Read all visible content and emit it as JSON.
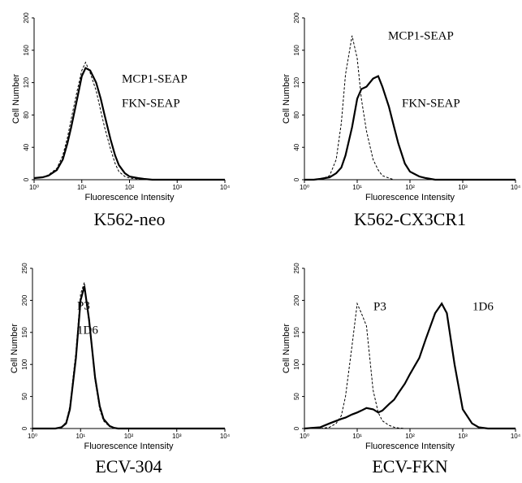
{
  "chart_data": [
    {
      "type": "line",
      "title": "K562-neo",
      "x_label": "Fluorescence Intensity",
      "y_label": "Cell Number",
      "xscale": "log",
      "xlim": [
        1,
        10000
      ],
      "xticks": [
        {
          "value": 1,
          "label": "10⁰"
        },
        {
          "value": 10,
          "label": "10¹"
        },
        {
          "value": 100,
          "label": "10²"
        },
        {
          "value": 1000,
          "label": "10³"
        },
        {
          "value": 10000,
          "label": "10⁴"
        }
      ],
      "ylim": [
        0,
        200
      ],
      "yticks": [
        0,
        40,
        80,
        120,
        160,
        200
      ],
      "x": [
        1,
        1.5,
        2,
        3,
        4,
        5,
        6,
        8,
        10,
        12,
        15,
        20,
        25,
        30,
        40,
        50,
        60,
        80,
        100,
        150,
        200,
        300,
        500,
        1000,
        10000
      ],
      "series": [
        {
          "name": "MCP1-SEAP",
          "color": "#000000",
          "dash": true,
          "values": [
            2,
            3,
            6,
            14,
            30,
            52,
            75,
            110,
            135,
            145,
            132,
            110,
            85,
            65,
            38,
            20,
            10,
            4,
            2,
            1,
            0,
            0,
            0,
            0,
            0
          ]
        },
        {
          "name": "FKN-SEAP",
          "color": "#000000",
          "dash": false,
          "values": [
            2,
            3,
            5,
            12,
            25,
            45,
            65,
            100,
            128,
            138,
            135,
            120,
            100,
            80,
            50,
            30,
            18,
            8,
            4,
            2,
            1,
            0,
            0,
            0,
            0
          ]
        }
      ]
    },
    {
      "type": "line",
      "title": "K562-CX3CR1",
      "x_label": "Fluorescence Intensity",
      "y_label": "Cell Number",
      "xscale": "log",
      "xlim": [
        1,
        10000
      ],
      "xticks": [
        {
          "value": 1,
          "label": "10⁰"
        },
        {
          "value": 10,
          "label": "10¹"
        },
        {
          "value": 100,
          "label": "10²"
        },
        {
          "value": 1000,
          "label": "10³"
        },
        {
          "value": 10000,
          "label": "10⁴"
        }
      ],
      "ylim": [
        0,
        200
      ],
      "yticks": [
        0,
        40,
        80,
        120,
        160,
        200
      ],
      "x": [
        1,
        1.5,
        2,
        3,
        4,
        5,
        6,
        8,
        10,
        12,
        15,
        20,
        25,
        30,
        40,
        50,
        60,
        80,
        100,
        150,
        200,
        300,
        500,
        1000,
        10000
      ],
      "series": [
        {
          "name": "MCP1-SEAP",
          "color": "#000000",
          "dash": true,
          "values": [
            0,
            0,
            0,
            5,
            25,
            70,
            130,
            178,
            150,
            100,
            60,
            25,
            12,
            5,
            2,
            0,
            0,
            0,
            0,
            0,
            0,
            0,
            0,
            0,
            0
          ]
        },
        {
          "name": "FKN-SEAP",
          "color": "#000000",
          "dash": false,
          "values": [
            0,
            0,
            1,
            3,
            8,
            15,
            30,
            65,
            100,
            112,
            115,
            125,
            128,
            115,
            90,
            65,
            45,
            20,
            10,
            4,
            2,
            0,
            0,
            0,
            0
          ]
        }
      ]
    },
    {
      "type": "line",
      "title": "ECV-304",
      "x_label": "Fluorescence Intensity",
      "y_label": "Cell Number",
      "xscale": "log",
      "xlim": [
        1,
        10000
      ],
      "xticks": [
        {
          "value": 1,
          "label": "10⁰"
        },
        {
          "value": 10,
          "label": "10¹"
        },
        {
          "value": 100,
          "label": "10²"
        },
        {
          "value": 1000,
          "label": "10³"
        },
        {
          "value": 10000,
          "label": "10⁴"
        }
      ],
      "ylim": [
        0,
        250
      ],
      "yticks": [
        0,
        50,
        100,
        150,
        200,
        250
      ],
      "x": [
        1,
        2,
        3,
        4,
        5,
        6,
        8,
        10,
        12,
        15,
        20,
        25,
        30,
        40,
        50,
        60,
        100,
        1000,
        10000
      ],
      "series": [
        {
          "name": "P3",
          "color": "#000000",
          "dash": true,
          "values": [
            0,
            0,
            0,
            2,
            10,
            35,
            120,
            210,
            228,
            165,
            75,
            30,
            12,
            3,
            1,
            0,
            0,
            0,
            0
          ]
        },
        {
          "name": "1D6",
          "color": "#000000",
          "dash": false,
          "values": [
            0,
            0,
            0,
            2,
            8,
            30,
            110,
            200,
            222,
            170,
            80,
            35,
            15,
            4,
            1,
            0,
            0,
            0,
            0
          ]
        }
      ]
    },
    {
      "type": "line",
      "title": "ECV-FKN",
      "x_label": "Fluorescence Intensity",
      "y_label": "Cell Number",
      "xscale": "log",
      "xlim": [
        1,
        10000
      ],
      "xticks": [
        {
          "value": 1,
          "label": "10⁰"
        },
        {
          "value": 10,
          "label": "10¹"
        },
        {
          "value": 100,
          "label": "10²"
        },
        {
          "value": 1000,
          "label": "10³"
        },
        {
          "value": 10000,
          "label": "10⁴"
        }
      ],
      "ylim": [
        0,
        250
      ],
      "yticks": [
        0,
        50,
        100,
        150,
        200,
        250
      ],
      "x": [
        1,
        2,
        3,
        4,
        5,
        6,
        8,
        10,
        12,
        15,
        20,
        25,
        30,
        40,
        50,
        60,
        80,
        100,
        150,
        200,
        300,
        400,
        500,
        700,
        1000,
        1500,
        2000,
        3000,
        10000
      ],
      "series": [
        {
          "name": "P3",
          "color": "#000000",
          "dash": true,
          "values": [
            0,
            0,
            2,
            8,
            20,
            50,
            130,
            195,
            180,
            160,
            60,
            25,
            12,
            5,
            2,
            1,
            0,
            0,
            0,
            0,
            0,
            0,
            0,
            0,
            0,
            0,
            0,
            0,
            0
          ]
        },
        {
          "name": "1D6",
          "color": "#000000",
          "dash": false,
          "values": [
            0,
            2,
            8,
            12,
            15,
            17,
            22,
            25,
            28,
            32,
            30,
            25,
            28,
            38,
            45,
            55,
            70,
            85,
            110,
            140,
            180,
            195,
            180,
            100,
            30,
            8,
            2,
            0,
            0
          ]
        }
      ]
    }
  ]
}
